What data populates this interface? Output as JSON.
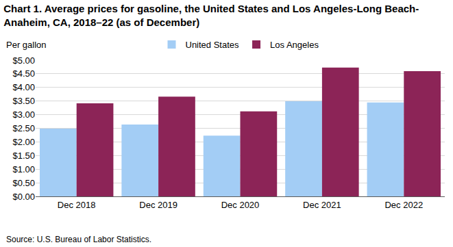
{
  "chart_data": {
    "type": "bar",
    "title": "Chart 1. Average prices for gasoline, the United States and Los Angeles-Long Beach-Anaheim, CA, 2018–22 (as of December)",
    "y_label": "Per gallon",
    "source": "Source: U.S. Bureau of Labor Statistics.",
    "categories": [
      "Dec 2018",
      "Dec 2019",
      "Dec 2020",
      "Dec 2021",
      "Dec 2022"
    ],
    "series": [
      {
        "name": "United States",
        "color": "#a3cdf5",
        "values": [
          2.49,
          2.64,
          2.23,
          3.49,
          3.45
        ]
      },
      {
        "name": "Los Angeles",
        "color": "#8c2457",
        "values": [
          3.42,
          3.66,
          3.12,
          4.73,
          4.6
        ]
      }
    ],
    "ylim": [
      0,
      5
    ],
    "yticks": [
      {
        "value": 0,
        "label": "$0.00"
      },
      {
        "value": 0.5,
        "label": "$0.50"
      },
      {
        "value": 1,
        "label": "$1.00"
      },
      {
        "value": 1.5,
        "label": "$1.50"
      },
      {
        "value": 2,
        "label": "$2.00"
      },
      {
        "value": 2.5,
        "label": "$2.50"
      },
      {
        "value": 3,
        "label": "$3.00"
      },
      {
        "value": 3.5,
        "label": "$3.50"
      },
      {
        "value": 4,
        "label": "$4.00"
      },
      {
        "value": 4.5,
        "label": "$4.50"
      },
      {
        "value": 5,
        "label": "$5.00"
      }
    ],
    "grid": true,
    "legend": "top"
  }
}
